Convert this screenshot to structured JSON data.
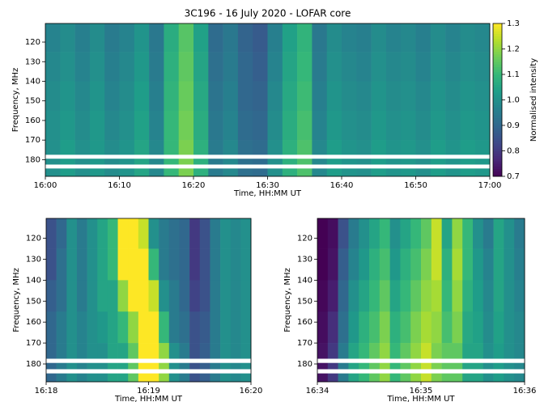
{
  "chart_data": [
    {
      "type": "heatmap",
      "title": "3C196 - 16 July 2020 - LOFAR core",
      "x_label": "Time, HH:MM UT",
      "y_label": "Frequency, MHz",
      "colormap": "viridis",
      "clim": [
        0.7,
        1.3
      ],
      "colorbar_label": "Normalised intensity",
      "colorbar_ticks": [
        0.7,
        0.8,
        0.9,
        1.0,
        1.1,
        1.2,
        1.3
      ],
      "y_inverted": true,
      "masked_bands": [
        [
          177.5,
          179.5
        ],
        [
          182.5,
          184.5
        ]
      ],
      "xlim": [
        960,
        1020
      ],
      "ylim": [
        110.5,
        188.5
      ],
      "xticks": [
        {
          "value": 960,
          "label": "16:00"
        },
        {
          "value": 970,
          "label": "16:10"
        },
        {
          "value": 980,
          "label": "16:20"
        },
        {
          "value": 990,
          "label": "16:30"
        },
        {
          "value": 1000,
          "label": "16:40"
        },
        {
          "value": 1010,
          "label": "16:50"
        },
        {
          "value": 1020,
          "label": "17:00"
        }
      ],
      "yticks": [
        120,
        130,
        140,
        150,
        160,
        170,
        180
      ],
      "x_edges": [
        960,
        962,
        964,
        966,
        968,
        970,
        972,
        974,
        976,
        978,
        980,
        982,
        984,
        986,
        988,
        990,
        992,
        994,
        996,
        998,
        1000,
        1002,
        1004,
        1006,
        1008,
        1010,
        1012,
        1014,
        1016,
        1018,
        1020
      ],
      "y_edges": [
        110.5,
        125,
        140,
        155,
        170,
        188.5
      ],
      "z": [
        [
          0.97,
          0.99,
          0.96,
          0.99,
          0.95,
          0.97,
          1.01,
          0.94,
          1.07,
          1.14,
          1.04,
          0.91,
          0.94,
          0.89,
          0.87,
          0.96,
          1.04,
          1.09,
          0.94,
          0.99,
          0.97,
          0.96,
          0.99,
          0.97,
          0.98,
          0.96,
          0.99,
          0.97,
          0.99,
          0.98
        ],
        [
          0.98,
          1.0,
          0.97,
          1.0,
          0.96,
          0.98,
          1.02,
          0.95,
          1.08,
          1.15,
          1.05,
          0.92,
          0.95,
          0.9,
          0.88,
          0.97,
          1.05,
          1.1,
          0.95,
          1.0,
          0.98,
          0.97,
          1.0,
          0.98,
          0.99,
          0.97,
          1.0,
          0.98,
          1.0,
          0.99
        ],
        [
          0.99,
          1.01,
          0.98,
          1.01,
          0.97,
          0.99,
          1.03,
          0.96,
          1.09,
          1.16,
          1.06,
          0.93,
          0.96,
          0.9,
          0.89,
          0.98,
          1.06,
          1.11,
          0.96,
          1.01,
          0.99,
          0.98,
          1.01,
          0.99,
          1.0,
          0.98,
          1.01,
          0.99,
          1.01,
          1.0
        ],
        [
          1.0,
          1.02,
          0.99,
          1.02,
          0.98,
          1.0,
          1.04,
          0.97,
          1.1,
          1.17,
          1.07,
          0.94,
          0.97,
          0.91,
          0.9,
          0.99,
          1.07,
          1.12,
          0.97,
          1.02,
          1.0,
          0.99,
          1.02,
          1.0,
          1.01,
          0.99,
          1.02,
          1.0,
          1.02,
          1.01
        ],
        [
          1.0,
          1.03,
          1.0,
          1.02,
          0.99,
          1.01,
          1.05,
          0.98,
          1.1,
          1.18,
          1.08,
          0.95,
          0.98,
          0.92,
          0.91,
          1.0,
          1.08,
          1.13,
          0.98,
          1.03,
          1.01,
          1.0,
          1.03,
          1.01,
          1.02,
          1.0,
          1.03,
          1.01,
          1.03,
          1.02
        ]
      ]
    },
    {
      "type": "heatmap",
      "x_label": "Time, HH:MM UT",
      "y_label": "Frequency, MHz",
      "colormap": "viridis",
      "clim": [
        0.7,
        1.3
      ],
      "y_inverted": true,
      "masked_bands": [
        [
          177.5,
          179.5
        ],
        [
          182.5,
          184.5
        ]
      ],
      "xlim": [
        1098,
        1100
      ],
      "ylim": [
        110.5,
        188.5
      ],
      "xticks": [
        {
          "value": 1098,
          "label": "16:18"
        },
        {
          "value": 1099,
          "label": "16:19"
        },
        {
          "value": 1100,
          "label": "16:20"
        }
      ],
      "yticks": [
        120,
        130,
        140,
        150,
        160,
        170,
        180
      ],
      "x_edges": [
        1098,
        1098.1,
        1098.2,
        1098.3,
        1098.4,
        1098.5,
        1098.6,
        1098.7,
        1098.8,
        1098.9,
        1099,
        1099.1,
        1099.2,
        1099.3,
        1099.4,
        1099.5,
        1099.6,
        1099.7,
        1099.8,
        1099.9,
        1100
      ],
      "y_edges": [
        110.5,
        125,
        140,
        155,
        170,
        188.5
      ],
      "z": [
        [
          0.85,
          0.9,
          1.0,
          0.95,
          1.0,
          1.05,
          1.1,
          1.3,
          1.3,
          1.25,
          1.0,
          0.95,
          0.92,
          0.9,
          0.8,
          0.85,
          0.95,
          1.0,
          0.98,
          1.0
        ],
        [
          0.85,
          0.92,
          1.0,
          0.95,
          1.0,
          1.05,
          1.1,
          1.3,
          1.3,
          1.3,
          1.1,
          0.95,
          0.92,
          0.9,
          0.8,
          0.85,
          0.95,
          1.0,
          0.98,
          1.0
        ],
        [
          0.88,
          0.92,
          1.0,
          0.95,
          1.0,
          1.05,
          1.05,
          1.2,
          1.3,
          1.3,
          1.25,
          1.0,
          0.95,
          0.9,
          0.82,
          0.85,
          0.95,
          1.0,
          0.98,
          1.0
        ],
        [
          0.9,
          0.95,
          1.0,
          0.97,
          1.0,
          1.02,
          1.05,
          1.1,
          1.2,
          1.3,
          1.3,
          1.1,
          0.95,
          0.92,
          0.85,
          0.87,
          0.95,
          1.0,
          0.98,
          1.0
        ],
        [
          0.9,
          0.95,
          1.0,
          0.97,
          1.0,
          1.0,
          1.05,
          1.05,
          1.15,
          1.3,
          1.3,
          1.2,
          1.0,
          0.95,
          0.85,
          0.88,
          0.95,
          1.0,
          0.98,
          1.0
        ]
      ]
    },
    {
      "type": "heatmap",
      "x_label": "Time, HH:MM UT",
      "y_label": "Frequency, MHz",
      "colormap": "viridis",
      "clim": [
        0.7,
        1.3
      ],
      "y_inverted": true,
      "masked_bands": [
        [
          177.5,
          179.5
        ],
        [
          182.5,
          184.5
        ]
      ],
      "xlim": [
        1114,
        1116
      ],
      "ylim": [
        110.5,
        188.5
      ],
      "xticks": [
        {
          "value": 1114,
          "label": "16:34"
        },
        {
          "value": 1115,
          "label": "16:35"
        },
        {
          "value": 1116,
          "label": "16:36"
        }
      ],
      "yticks": [
        120,
        130,
        140,
        150,
        160,
        170,
        180
      ],
      "x_edges": [
        1114,
        1114.1,
        1114.2,
        1114.3,
        1114.4,
        1114.5,
        1114.6,
        1114.7,
        1114.8,
        1114.9,
        1115,
        1115.1,
        1115.2,
        1115.3,
        1115.4,
        1115.5,
        1115.6,
        1115.7,
        1115.8,
        1115.9,
        1116
      ],
      "y_edges": [
        110.5,
        125,
        140,
        155,
        170,
        188.5
      ],
      "z": [
        [
          0.7,
          0.72,
          0.85,
          0.95,
          1.0,
          1.05,
          1.1,
          1.0,
          1.05,
          1.1,
          1.15,
          1.25,
          1.05,
          1.2,
          1.1,
          1.0,
          0.95,
          1.05,
          1.0,
          0.95
        ],
        [
          0.7,
          0.73,
          0.88,
          0.97,
          1.02,
          1.08,
          1.12,
          1.02,
          1.08,
          1.12,
          1.18,
          1.25,
          1.08,
          1.22,
          1.1,
          1.02,
          0.97,
          1.05,
          1.0,
          0.96
        ],
        [
          0.71,
          0.75,
          0.9,
          1.0,
          1.05,
          1.1,
          1.15,
          1.05,
          1.1,
          1.15,
          1.2,
          1.22,
          1.1,
          1.2,
          1.08,
          1.03,
          0.98,
          1.05,
          1.0,
          0.97
        ],
        [
          0.72,
          0.78,
          0.92,
          1.02,
          1.08,
          1.12,
          1.18,
          1.08,
          1.12,
          1.18,
          1.22,
          1.2,
          1.12,
          1.18,
          1.06,
          1.04,
          0.99,
          1.04,
          1.0,
          0.98
        ],
        [
          0.73,
          0.8,
          0.95,
          1.05,
          1.1,
          1.15,
          1.2,
          1.1,
          1.15,
          1.2,
          1.25,
          1.18,
          1.15,
          1.15,
          1.05,
          1.05,
          1.0,
          1.03,
          1.0,
          0.98
        ]
      ]
    }
  ]
}
